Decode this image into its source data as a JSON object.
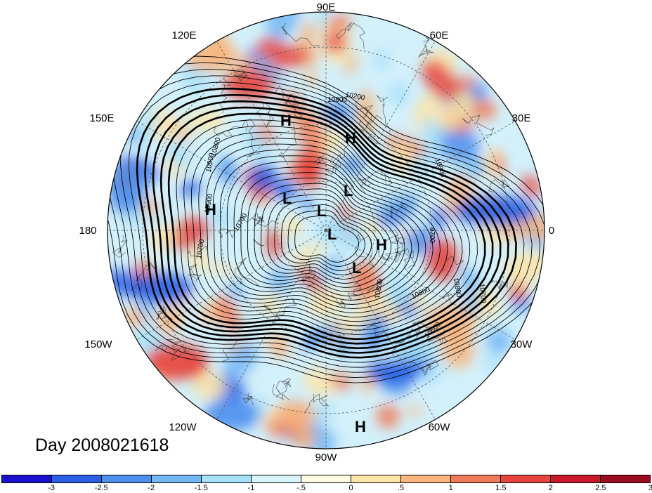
{
  "title": "Day 2008021618",
  "longitude_labels": [
    "90E",
    "60E",
    "30E",
    "0",
    "30W",
    "60W",
    "90W",
    "120W",
    "150W",
    "180",
    "150E",
    "120E"
  ],
  "pressure_systems": [
    {
      "type": "H",
      "lon_deg": 110,
      "lat_deg": 25
    },
    {
      "type": "H",
      "lon_deg": 75,
      "lat_deg": 35
    },
    {
      "type": "H",
      "lon_deg": 170,
      "lat_deg": 25
    },
    {
      "type": "H",
      "lon_deg": -15,
      "lat_deg": 55
    },
    {
      "type": "H",
      "lon_deg": -80,
      "lat_deg": -5
    },
    {
      "type": "L",
      "lon_deg": 140,
      "lat_deg": 60
    },
    {
      "type": "L",
      "lon_deg": 60,
      "lat_deg": 62
    },
    {
      "type": "L",
      "lon_deg": 100,
      "lat_deg": 78
    },
    {
      "type": "L",
      "lon_deg": -30,
      "lat_deg": 85
    },
    {
      "type": "L",
      "lon_deg": -50,
      "lat_deg": 60
    }
  ],
  "contour_labels": [
    "10800",
    "10900",
    "10800",
    "10700",
    "9700",
    "10700",
    "10800",
    "10800",
    "10500",
    "10700",
    "10800",
    "10900",
    "10200",
    "10800"
  ],
  "colorbar": {
    "tick_labels": [
      "-3",
      "-2.5",
      "-2",
      "-1.5",
      "-1",
      "-.5",
      "0",
      ".5",
      "1",
      "1.5",
      "2",
      "2.5",
      "3"
    ],
    "colors": [
      "#1a10d0",
      "#2a5fe6",
      "#4e8fee",
      "#73b6f4",
      "#a6e1fa",
      "#d7f4fb",
      "#fdfbe0",
      "#fde4a8",
      "#f8b57d",
      "#f07b5a",
      "#e6443f",
      "#c81a2a",
      "#9c0b1f"
    ]
  }
}
